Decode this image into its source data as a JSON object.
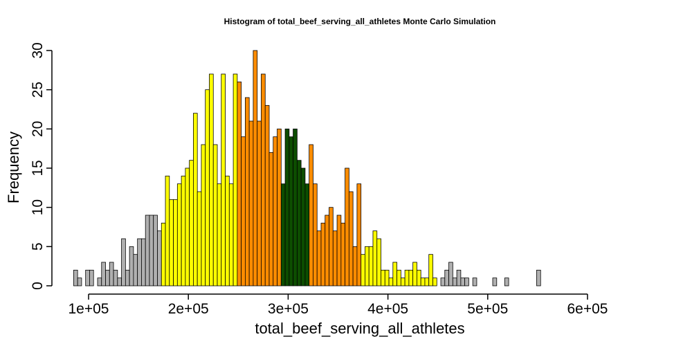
{
  "chart_data": {
    "type": "bar",
    "title": "Histogram of  total_beef_serving_all_athletes  Monte Carlo Simulation",
    "xlabel": "total_beef_serving_all_athletes",
    "ylabel": "Frequency",
    "xlim": [
      100000,
      660000
    ],
    "ylim": [
      0,
      30
    ],
    "x_ticks": [
      100000,
      200000,
      300000,
      400000,
      500000,
      600000
    ],
    "x_tick_labels": [
      "1e+05",
      "2e+05",
      "3e+05",
      "4e+05",
      "5e+05",
      "6e+05"
    ],
    "y_ticks": [
      0,
      5,
      10,
      15,
      20,
      25,
      30
    ],
    "y_tick_labels": [
      "0",
      "5",
      "10",
      "15",
      "20",
      "25",
      "30"
    ],
    "grid": false,
    "bin_start": 85000,
    "bin_width": 4000,
    "counts": [
      2,
      1,
      0,
      2,
      2,
      0,
      1,
      3,
      2,
      3,
      2,
      1,
      6,
      2,
      5,
      4,
      6,
      6,
      9,
      9,
      9,
      7,
      8,
      14,
      11,
      11,
      13,
      14,
      15,
      16,
      22,
      12,
      18,
      25,
      27,
      18,
      13,
      27,
      14,
      13,
      27,
      26,
      19,
      24,
      21,
      30,
      21,
      27,
      23,
      17,
      19,
      20,
      13,
      20,
      19,
      20,
      16,
      15,
      13,
      18,
      13,
      7,
      8,
      9,
      10,
      7,
      9,
      8,
      15,
      12,
      5,
      13,
      4,
      5,
      5,
      7,
      6,
      2,
      2,
      1,
      3,
      2,
      1,
      2,
      2,
      3,
      2,
      1,
      1,
      4,
      1,
      0,
      1,
      2,
      3,
      1,
      2,
      1,
      1,
      0,
      1,
      0,
      0,
      0,
      0,
      1,
      0,
      0,
      1,
      0,
      0,
      0,
      0,
      0,
      0,
      0,
      2
    ],
    "colors": {
      "dark_green": "#0d4d00",
      "orange": "#ff8c00",
      "yellow": "#ffff00",
      "gray": "#b0b0b0",
      "bar_stroke": "#000000"
    },
    "color_bands": [
      {
        "from": 85000,
        "to": 175000,
        "color": "gray"
      },
      {
        "from": 175000,
        "to": 250000,
        "color": "yellow"
      },
      {
        "from": 250000,
        "to": 295000,
        "color": "orange"
      },
      {
        "from": 295000,
        "to": 320000,
        "color": "dark_green"
      },
      {
        "from": 320000,
        "to": 375000,
        "color": "orange"
      },
      {
        "from": 375000,
        "to": 455000,
        "color": "yellow"
      },
      {
        "from": 455000,
        "to": 660000,
        "color": "gray"
      }
    ]
  }
}
